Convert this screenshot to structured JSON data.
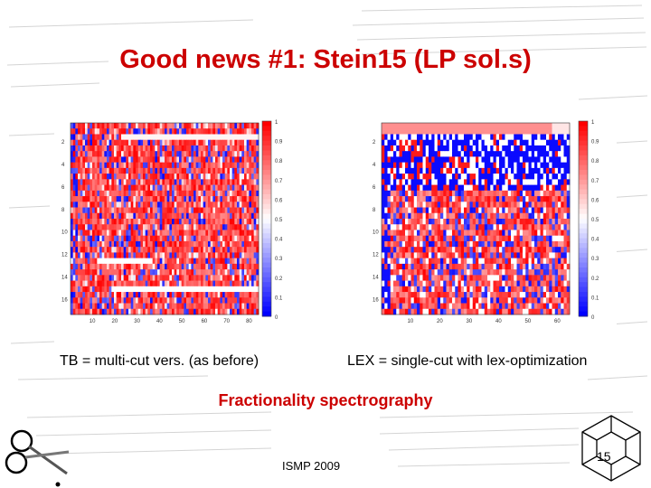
{
  "slide": {
    "title": "Good news #1: Stein15 (LP sol.s)",
    "caption_left": "TB = multi-cut vers. (as before)",
    "caption_right": "LEX = single-cut with lex-optimization",
    "subtitle": "Fractionality spectrography",
    "footer": "ISMP 2009",
    "page_number": "15",
    "accent_color": "#cc0000"
  },
  "left_plot": {
    "y_ticks": [
      "2",
      "4",
      "6",
      "8",
      "10",
      "12",
      "14",
      "16"
    ],
    "x_ticks": [
      "10",
      "20",
      "30",
      "40",
      "50",
      "60",
      "70",
      "80"
    ],
    "colorbar_ticks": [
      "1",
      "0.9",
      "0.8",
      "0.7",
      "0.6",
      "0.5",
      "0.4",
      "0.3",
      "0.2",
      "0.1",
      "0"
    ]
  },
  "right_plot": {
    "y_ticks": [
      "2",
      "4",
      "6",
      "8",
      "10",
      "12",
      "14",
      "16"
    ],
    "x_ticks": [
      "10",
      "20",
      "30",
      "40",
      "50",
      "60"
    ],
    "colorbar_ticks": [
      "1",
      "0.9",
      "0.8",
      "0.7",
      "0.6",
      "0.5",
      "0.4",
      "0.3",
      "0.2",
      "0.1",
      "0"
    ]
  },
  "icons": {
    "left_decor": "scissors-icon",
    "right_decor": "hypercube-icon"
  }
}
